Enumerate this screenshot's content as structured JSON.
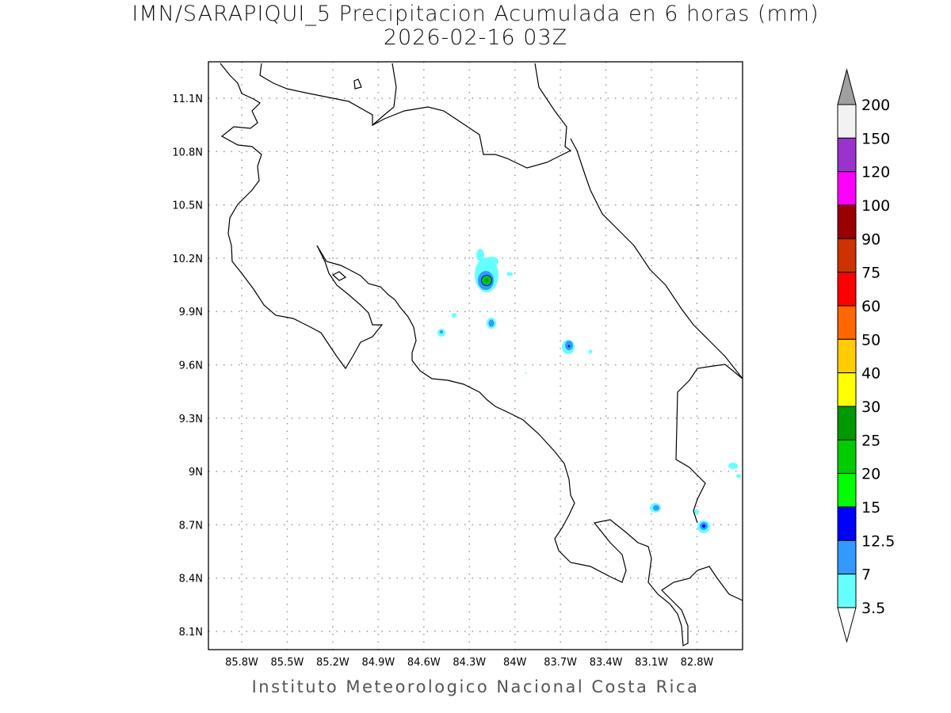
{
  "title": "IMN/SARAPIQUI_5 Precipitacion Acumulada en 6 horas (mm)",
  "subtitle": "2026-02-16 03Z",
  "footer": "Instituto Meteorologico Nacional Costa Rica",
  "map": {
    "lon_labels": [
      "85.8W",
      "85.5W",
      "85.2W",
      "84.9W",
      "84.6W",
      "84.3W",
      "84W",
      "83.7W",
      "83.4W",
      "83.1W",
      "82.8W"
    ],
    "lat_labels": [
      "11.1N",
      "10.8N",
      "10.5N",
      "10.2N",
      "9.9N",
      "9.6N",
      "9.3N",
      "9N",
      "8.7N",
      "8.4N",
      "8.1N"
    ],
    "grid": true
  },
  "colorbar": {
    "labels": [
      "200",
      "150",
      "120",
      "100",
      "90",
      "75",
      "60",
      "50",
      "40",
      "30",
      "25",
      "20",
      "15",
      "12.5",
      "7",
      "3.5"
    ],
    "over_color": "#a0a0a0",
    "under_color": "#ffffff",
    "colors": [
      "#f2f2f2",
      "#9933cc",
      "#ff00ff",
      "#990000",
      "#cc3300",
      "#ff0000",
      "#ff6600",
      "#ffcc00",
      "#ffff00",
      "#009900",
      "#00cc00",
      "#00ff00",
      "#0000ff",
      "#3399ff",
      "#66ffff"
    ]
  }
}
